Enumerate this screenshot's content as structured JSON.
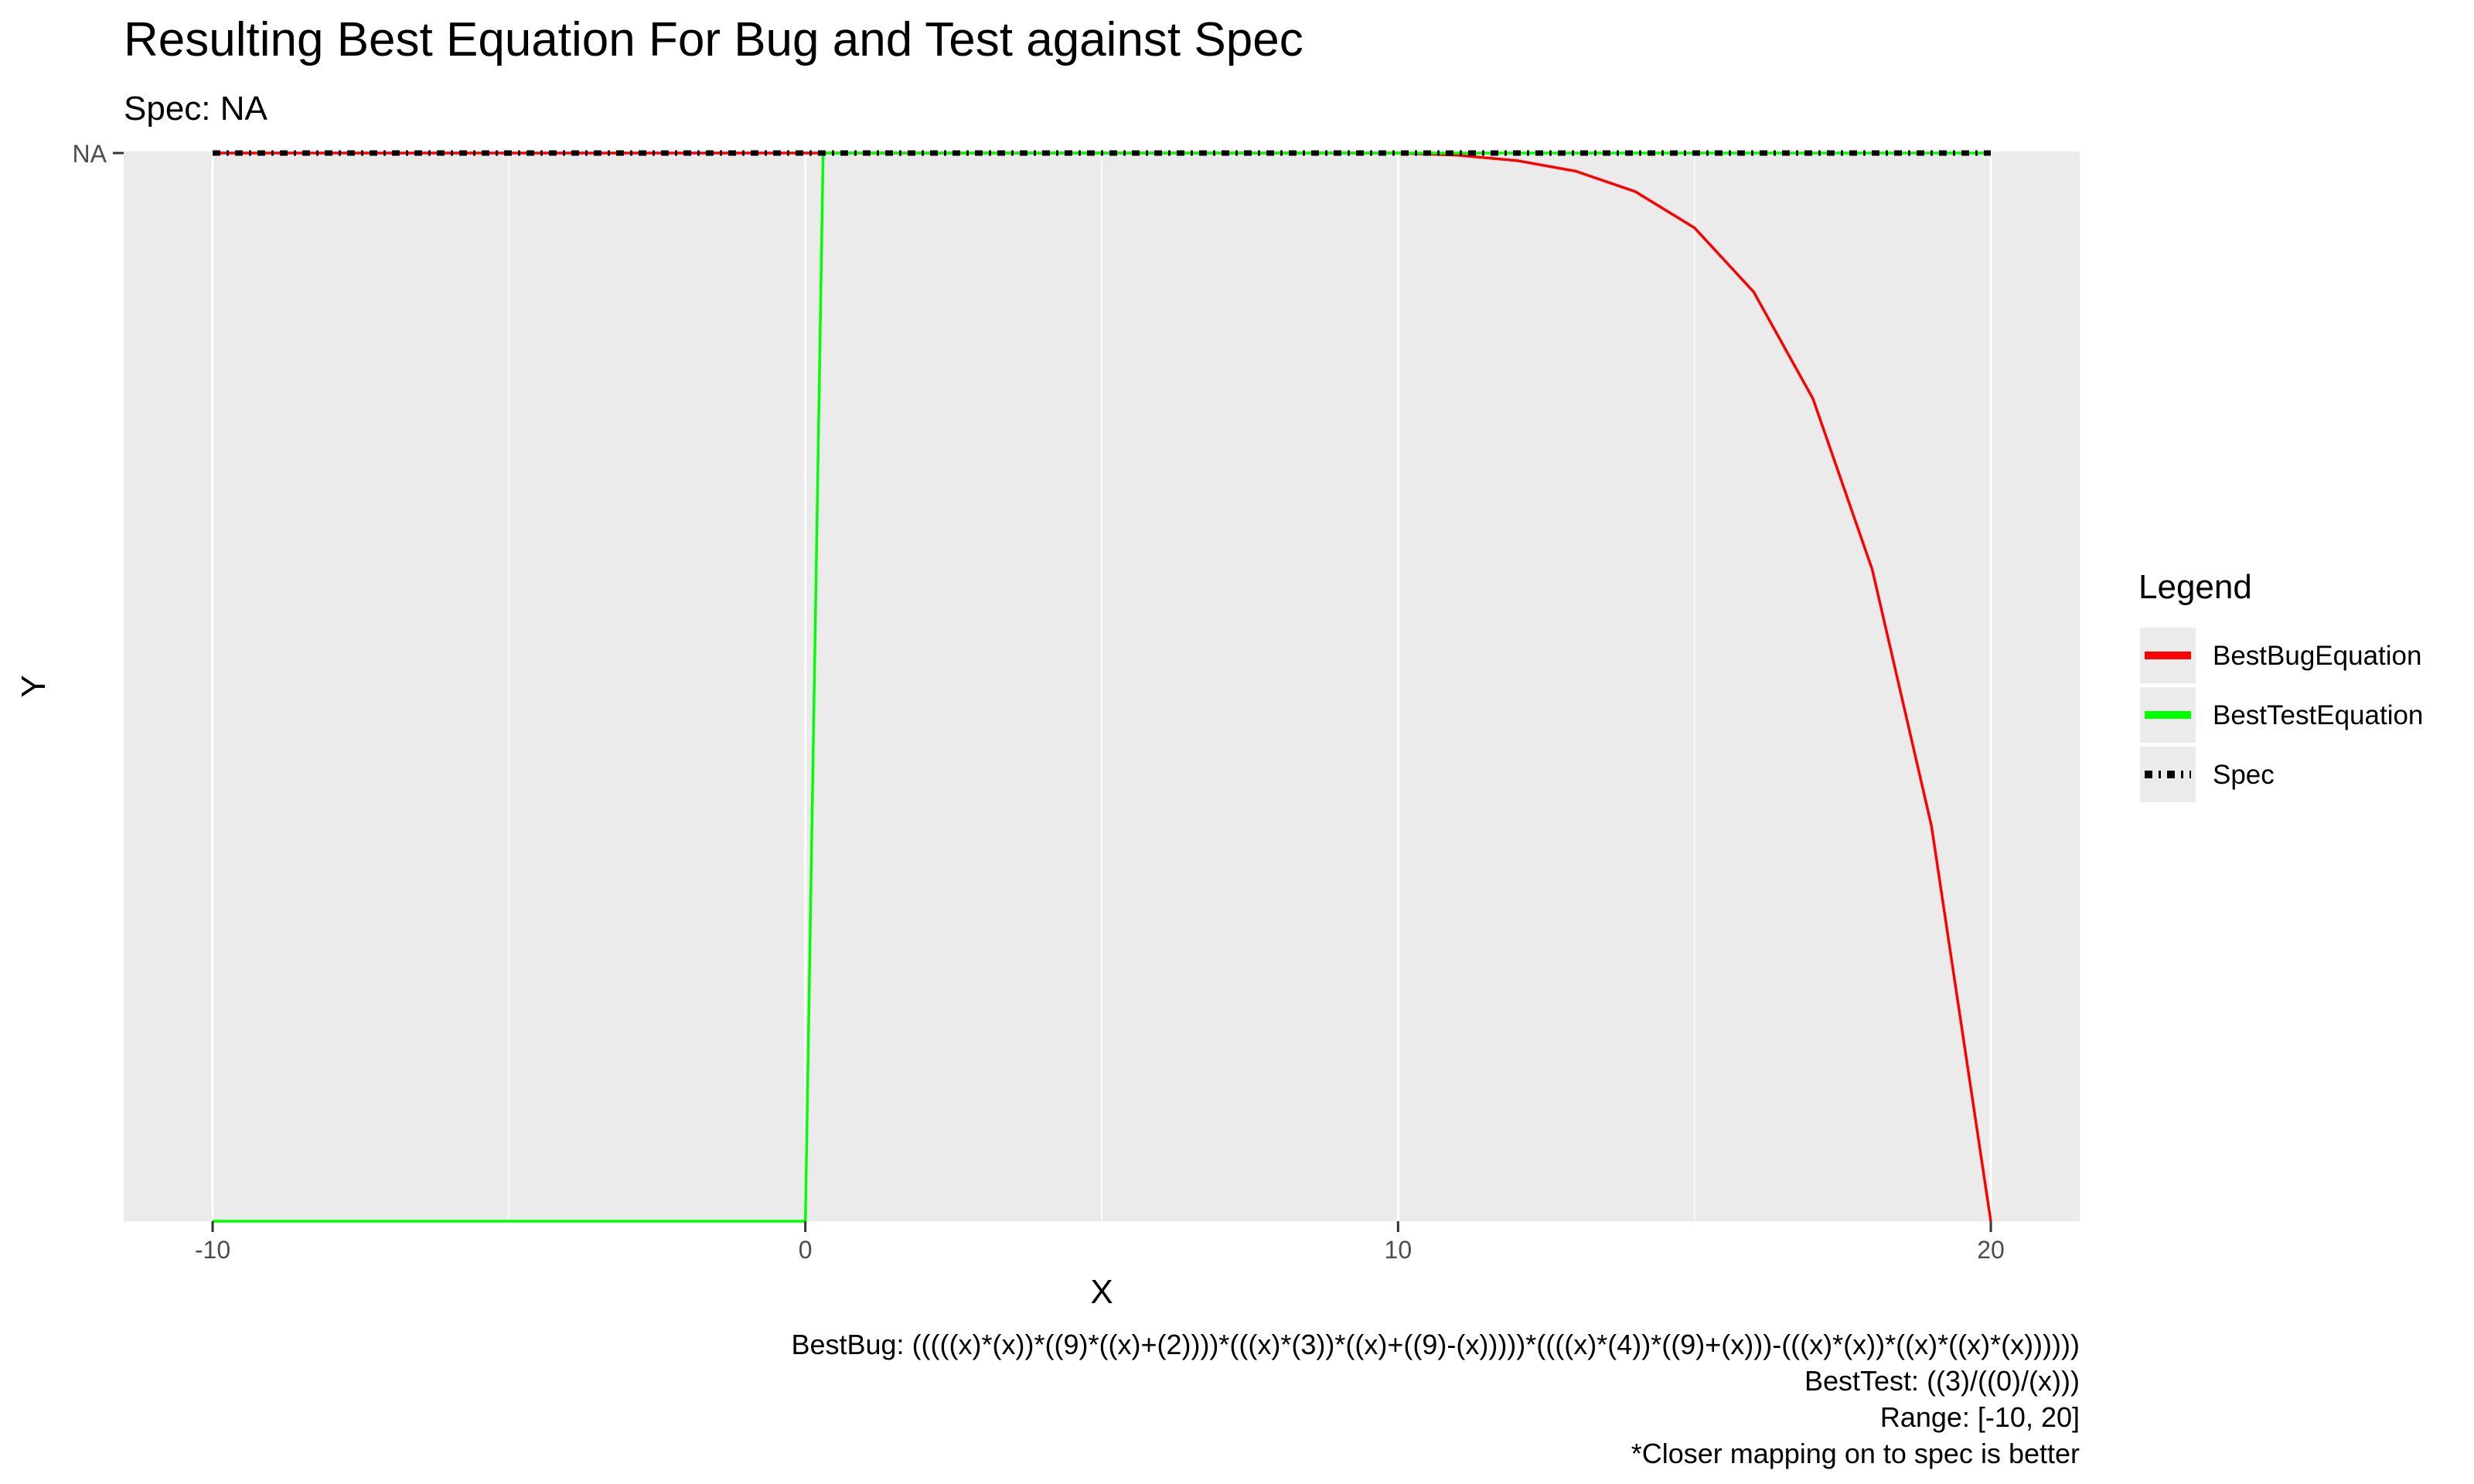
{
  "chart_data": {
    "type": "line",
    "title": "Resulting Best Equation For Bug and Test against Spec",
    "subtitle": "Spec: NA",
    "xlabel": "X",
    "ylabel": "Y",
    "xlim": [
      -11.5,
      21.5
    ],
    "xticks": [
      -10,
      0,
      10,
      20
    ],
    "xtick_labels": [
      "-10",
      "0",
      "10",
      "20"
    ],
    "yticks": [
      "NA"
    ],
    "grid": true,
    "legend": {
      "title": "Legend",
      "placement": "right",
      "entries": [
        {
          "label": "BestBugEquation",
          "color": "#ff0000",
          "style": "solid"
        },
        {
          "label": "BestTestEquation",
          "color": "#00ff00",
          "style": "solid"
        },
        {
          "label": "Spec",
          "color": "#000000",
          "style": "dotdash"
        }
      ]
    },
    "series": [
      {
        "name": "BestBugEquation",
        "color": "#ff0000",
        "x": [
          -10,
          -5,
          0,
          5,
          10,
          11,
          12,
          13,
          14,
          15,
          16,
          17,
          18,
          19,
          20
        ],
        "y": [
          0,
          0,
          0,
          0,
          0,
          -0.002,
          -0.007,
          -0.017,
          -0.036,
          -0.07,
          -0.13,
          -0.23,
          -0.39,
          -0.63,
          -1.0
        ]
      },
      {
        "name": "BestTestEquation",
        "color": "#00ff00",
        "x": [
          -10,
          0,
          0.3,
          20
        ],
        "y": [
          -1.0,
          -1.0,
          0,
          0
        ]
      },
      {
        "name": "Spec",
        "color": "#000000",
        "x": [
          -10,
          20
        ],
        "y": [
          0,
          0
        ]
      }
    ],
    "captions": [
      "BestBug: (((((x)*(x))*((9)*((x)+(2))))*(((x)*(3))*((x)+((9)-(x)))))*((((x)*(4))*((9)+(x)))-(((x)*(x))*((x)*((x)*(x))))))",
      "BestTest: ((3)/((0)/(x)))",
      "Range: [-10, 20]",
      "*Closer mapping on to spec is better"
    ]
  }
}
